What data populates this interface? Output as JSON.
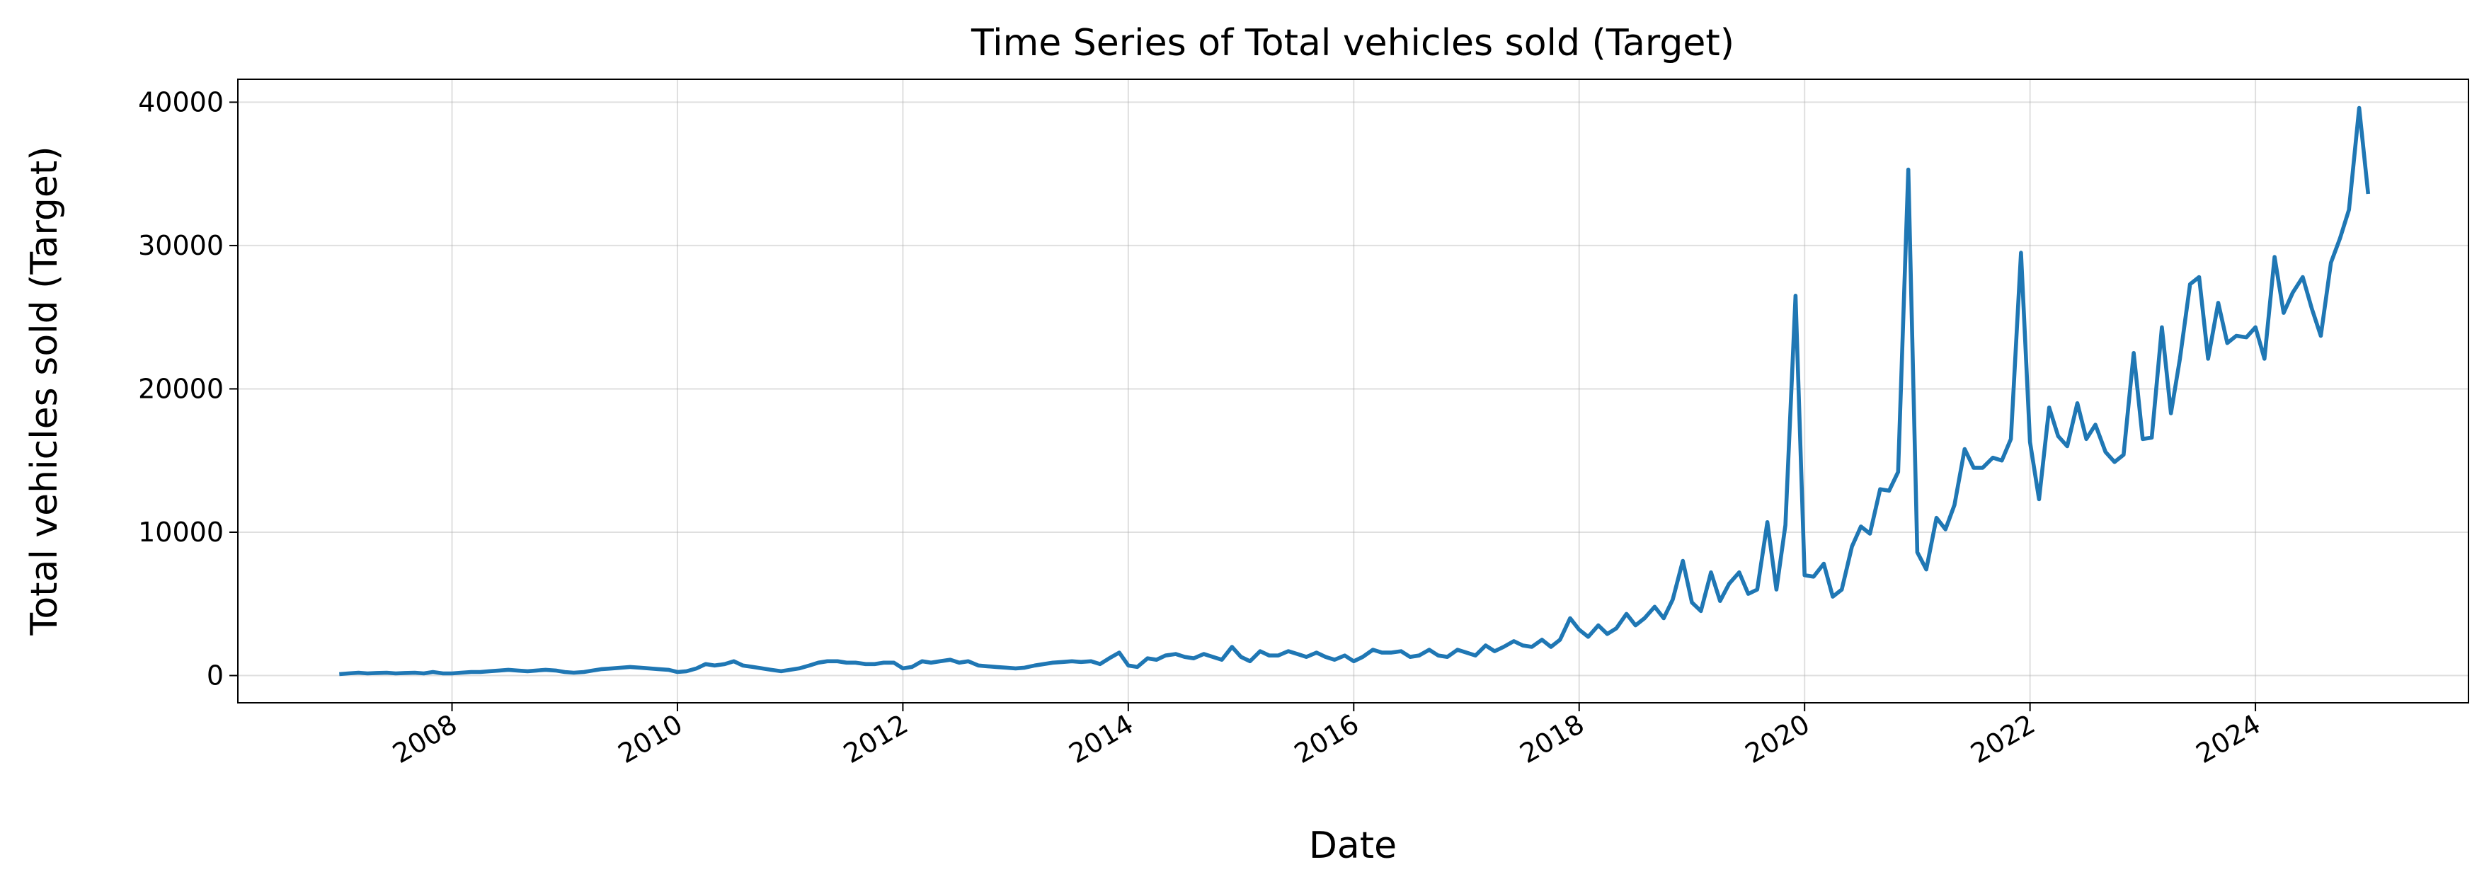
{
  "chart_data": {
    "type": "line",
    "title": "Time Series of Total vehicles sold (Target)",
    "x_label": "Date",
    "y_label": "Total vehicles sold (Target)",
    "x": [
      2007.0,
      2007.08,
      2007.17,
      2007.25,
      2007.33,
      2007.42,
      2007.5,
      2007.58,
      2007.67,
      2007.75,
      2007.83,
      2007.92,
      2008.0,
      2008.08,
      2008.17,
      2008.25,
      2008.33,
      2008.42,
      2008.5,
      2008.58,
      2008.67,
      2008.75,
      2008.83,
      2008.92,
      2009.0,
      2009.08,
      2009.17,
      2009.25,
      2009.33,
      2009.42,
      2009.5,
      2009.58,
      2009.67,
      2009.75,
      2009.83,
      2009.92,
      2010.0,
      2010.08,
      2010.17,
      2010.25,
      2010.33,
      2010.42,
      2010.5,
      2010.58,
      2010.67,
      2010.75,
      2010.83,
      2010.92,
      2011.0,
      2011.08,
      2011.17,
      2011.25,
      2011.33,
      2011.42,
      2011.5,
      2011.58,
      2011.67,
      2011.75,
      2011.83,
      2011.92,
      2012.0,
      2012.08,
      2012.17,
      2012.25,
      2012.33,
      2012.42,
      2012.5,
      2012.58,
      2012.67,
      2012.75,
      2012.83,
      2012.92,
      2013.0,
      2013.08,
      2013.17,
      2013.25,
      2013.33,
      2013.42,
      2013.5,
      2013.58,
      2013.67,
      2013.75,
      2013.83,
      2013.92,
      2014.0,
      2014.08,
      2014.17,
      2014.25,
      2014.33,
      2014.42,
      2014.5,
      2014.58,
      2014.67,
      2014.75,
      2014.83,
      2014.92,
      2015.0,
      2015.08,
      2015.17,
      2015.25,
      2015.33,
      2015.42,
      2015.5,
      2015.58,
      2015.67,
      2015.75,
      2015.83,
      2015.92,
      2016.0,
      2016.08,
      2016.17,
      2016.25,
      2016.33,
      2016.42,
      2016.5,
      2016.58,
      2016.67,
      2016.75,
      2016.83,
      2016.92,
      2017.0,
      2017.08,
      2017.17,
      2017.25,
      2017.33,
      2017.42,
      2017.5,
      2017.58,
      2017.67,
      2017.75,
      2017.83,
      2017.92,
      2018.0,
      2018.08,
      2018.17,
      2018.25,
      2018.33,
      2018.42,
      2018.5,
      2018.58,
      2018.67,
      2018.75,
      2018.83,
      2018.92,
      2019.0,
      2019.08,
      2019.17,
      2019.25,
      2019.33,
      2019.42,
      2019.5,
      2019.58,
      2019.67,
      2019.75,
      2019.83,
      2019.92,
      2020.0,
      2020.08,
      2020.17,
      2020.25,
      2020.33,
      2020.42,
      2020.5,
      2020.58,
      2020.67,
      2020.75,
      2020.83,
      2020.92,
      2021.0,
      2021.08,
      2021.17,
      2021.25,
      2021.33,
      2021.42,
      2021.5,
      2021.58,
      2021.67,
      2021.75,
      2021.83,
      2021.92,
      2022.0,
      2022.08,
      2022.17,
      2022.25,
      2022.33,
      2022.42,
      2022.5,
      2022.58,
      2022.67,
      2022.75,
      2022.83,
      2022.92,
      2023.0,
      2023.08,
      2023.17,
      2023.25,
      2023.33,
      2023.42,
      2023.5,
      2023.58,
      2023.67,
      2023.75,
      2023.83,
      2023.92,
      2024.0,
      2024.08,
      2024.17,
      2024.25,
      2024.33,
      2024.42,
      2024.5,
      2024.58,
      2024.67,
      2024.75,
      2024.83,
      2024.92,
      2025.0
    ],
    "series": [
      {
        "color": "#1f77b4",
        "values": [
          100,
          150,
          200,
          150,
          180,
          200,
          150,
          180,
          200,
          150,
          250,
          150,
          150,
          200,
          250,
          250,
          300,
          350,
          400,
          350,
          300,
          350,
          400,
          350,
          250,
          200,
          250,
          350,
          450,
          500,
          550,
          600,
          550,
          500,
          450,
          400,
          250,
          300,
          500,
          800,
          700,
          800,
          1000,
          700,
          600,
          500,
          400,
          300,
          400,
          500,
          700,
          900,
          1000,
          1000,
          900,
          900,
          800,
          800,
          900,
          900,
          500,
          600,
          1000,
          900,
          1000,
          1100,
          900,
          1000,
          700,
          650,
          600,
          550,
          500,
          550,
          700,
          800,
          900,
          950,
          1000,
          950,
          1000,
          800,
          1200,
          1600,
          700,
          600,
          1200,
          1100,
          1400,
          1500,
          1300,
          1200,
          1500,
          1300,
          1100,
          2000,
          1300,
          1000,
          1700,
          1400,
          1400,
          1700,
          1500,
          1300,
          1600,
          1300,
          1100,
          1400,
          1000,
          1300,
          1800,
          1600,
          1600,
          1700,
          1300,
          1400,
          1800,
          1400,
          1300,
          1800,
          1600,
          1400,
          2100,
          1700,
          2000,
          2400,
          2100,
          2000,
          2500,
          2000,
          2500,
          4000,
          3200,
          2700,
          3500,
          2900,
          3300,
          4300,
          3500,
          4000,
          4800,
          4000,
          5300,
          8000,
          5100,
          4500,
          7200,
          5200,
          6400,
          7200,
          5700,
          6000,
          10700,
          6000,
          10500,
          26500,
          7000,
          6900,
          7800,
          5500,
          6000,
          9000,
          10400,
          9900,
          13000,
          12900,
          14200,
          35300,
          8600,
          7400,
          11000,
          10200,
          11900,
          15800,
          14500,
          14500,
          15200,
          15000,
          16500,
          29500,
          16300,
          12300,
          18700,
          16700,
          16000,
          19000,
          16500,
          17500,
          15600,
          14900,
          15400,
          22500,
          16500,
          16600,
          24300,
          18300,
          22100,
          27300,
          27800,
          22100,
          26000,
          23200,
          23700,
          23600,
          24300,
          22100,
          29200,
          25300,
          26700,
          27800,
          25600,
          23700,
          28800,
          30500,
          32500,
          39600,
          33600
        ]
      }
    ],
    "xlim": [
      2006.1,
      2025.89
    ],
    "xticks": [
      2008,
      2010,
      2012,
      2014,
      2016,
      2018,
      2020,
      2022,
      2024
    ],
    "ylim": [
      -1900,
      41600
    ],
    "yticks": [
      0,
      10000,
      20000,
      30000,
      40000
    ],
    "grid": true
  }
}
